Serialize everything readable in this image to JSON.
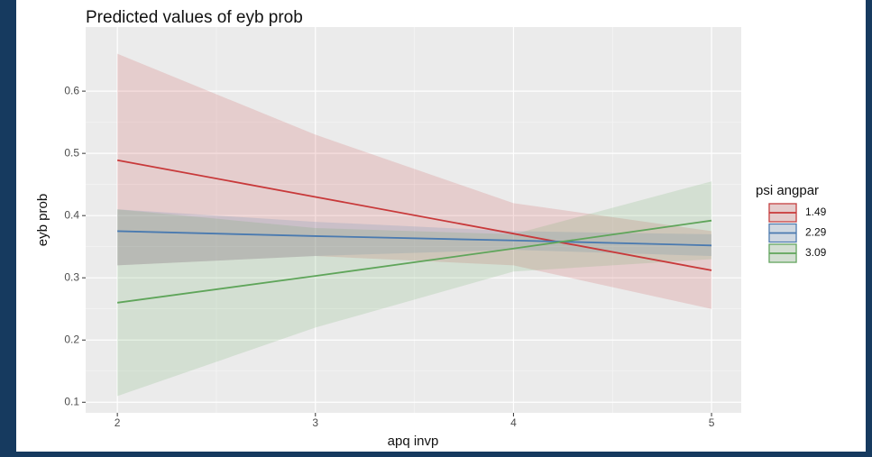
{
  "chart_data": {
    "type": "line",
    "title": "Predicted values of eyb prob",
    "x_label": "apq invp",
    "y_label": "eyb prob",
    "legend_title": "psi angpar",
    "legend": "right",
    "grid": true,
    "x": [
      2,
      3,
      4,
      5
    ],
    "xlim": [
      1.84,
      5.15
    ],
    "xticks": [
      2,
      3,
      4,
      5
    ],
    "ylim": [
      0.083,
      0.703
    ],
    "yticks": [
      0.1,
      0.2,
      0.3,
      0.4,
      0.5,
      0.6
    ],
    "series": [
      {
        "name": "1.49",
        "color": "#c8393a",
        "values": [
          0.489,
          0.43,
          0.371,
          0.312
        ],
        "lower": [
          0.32,
          0.335,
          0.32,
          0.25
        ],
        "upper": [
          0.66,
          0.53,
          0.42,
          0.375
        ]
      },
      {
        "name": "2.29",
        "color": "#4a7ab0",
        "values": [
          0.375,
          0.367,
          0.36,
          0.352
        ],
        "lower": [
          0.32,
          0.335,
          0.345,
          0.335
        ],
        "upper": [
          0.41,
          0.39,
          0.375,
          0.37
        ]
      },
      {
        "name": "3.09",
        "color": "#5fa55a",
        "values": [
          0.26,
          0.303,
          0.347,
          0.392
        ],
        "lower": [
          0.11,
          0.22,
          0.31,
          0.33
        ],
        "upper": [
          0.41,
          0.38,
          0.37,
          0.455
        ]
      }
    ]
  }
}
